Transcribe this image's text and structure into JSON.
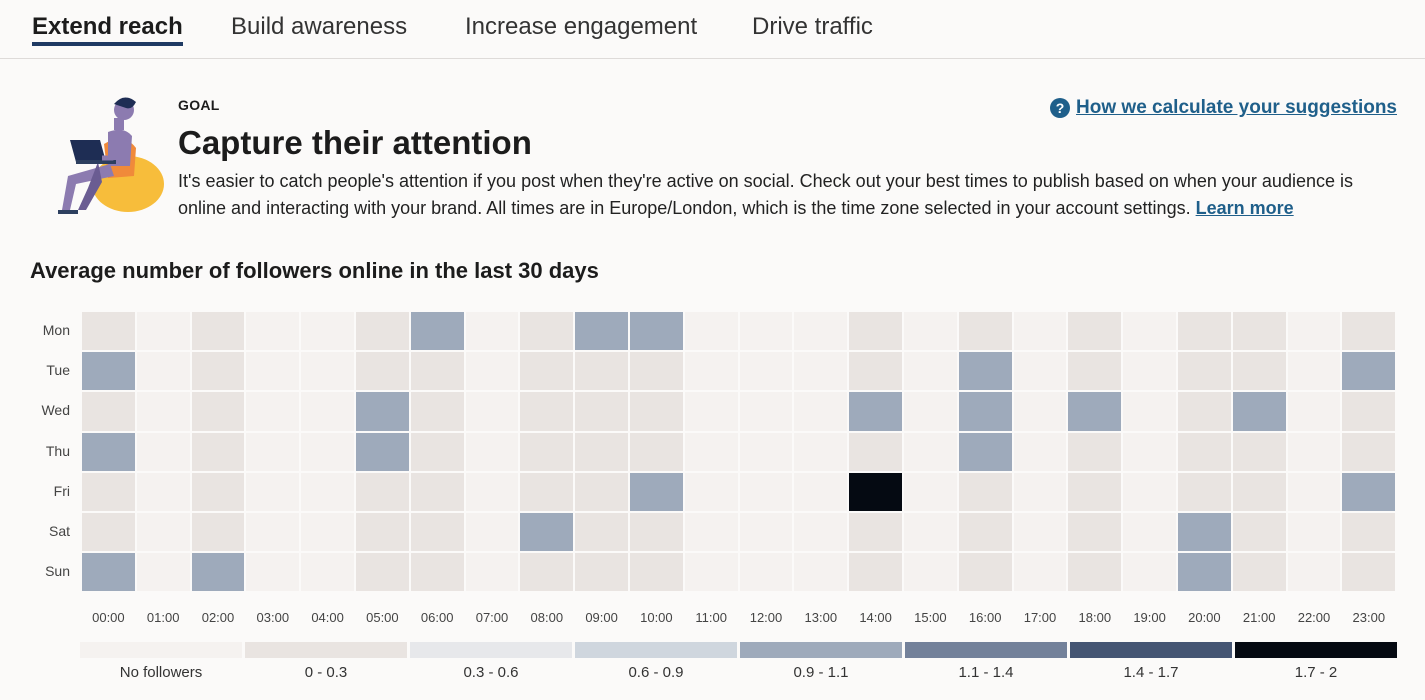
{
  "tabs": [
    {
      "label": "Extend reach",
      "active": true
    },
    {
      "label": "Build awareness",
      "active": false
    },
    {
      "label": "Increase engagement",
      "active": false
    },
    {
      "label": "Drive traffic",
      "active": false
    }
  ],
  "goal": {
    "label": "GOAL",
    "title": "Capture their attention",
    "description": "It's easier to catch people's attention if you post when they're active on social. Check out your best times to publish based on when your audience is online and interacting with your brand. All times are in Europe/London, which is the time zone selected in your account settings.",
    "learn_more": "Learn more"
  },
  "help": {
    "icon": "help-circle-icon",
    "icon_glyph": "?",
    "label": "How we calculate your suggestions"
  },
  "chart_title": "Average number of followers online in the last 30 days",
  "chart_data": {
    "type": "heatmap",
    "title": "Average number of followers online in the last 30 days",
    "rows": [
      "Mon",
      "Tue",
      "Wed",
      "Thu",
      "Fri",
      "Sat",
      "Sun"
    ],
    "columns": [
      "00:00",
      "01:00",
      "02:00",
      "03:00",
      "04:00",
      "05:00",
      "06:00",
      "07:00",
      "08:00",
      "09:00",
      "10:00",
      "11:00",
      "12:00",
      "13:00",
      "14:00",
      "15:00",
      "16:00",
      "17:00",
      "18:00",
      "19:00",
      "20:00",
      "21:00",
      "22:00",
      "23:00"
    ],
    "bucket_values": [
      [
        1,
        0,
        1,
        0,
        0,
        1,
        4,
        0,
        1,
        4,
        4,
        0,
        0,
        0,
        1,
        0,
        1,
        0,
        1,
        0,
        1,
        1,
        0,
        1
      ],
      [
        4,
        0,
        1,
        0,
        0,
        1,
        1,
        0,
        1,
        1,
        1,
        0,
        0,
        0,
        1,
        0,
        4,
        0,
        1,
        0,
        1,
        1,
        0,
        4
      ],
      [
        1,
        0,
        1,
        0,
        0,
        4,
        1,
        0,
        1,
        1,
        1,
        0,
        0,
        0,
        4,
        0,
        4,
        0,
        4,
        0,
        1,
        4,
        0,
        1
      ],
      [
        4,
        0,
        1,
        0,
        0,
        4,
        1,
        0,
        1,
        1,
        1,
        0,
        0,
        0,
        1,
        0,
        4,
        0,
        1,
        0,
        1,
        1,
        0,
        1
      ],
      [
        1,
        0,
        1,
        0,
        0,
        1,
        1,
        0,
        1,
        1,
        4,
        0,
        0,
        0,
        7,
        0,
        1,
        0,
        1,
        0,
        1,
        1,
        0,
        4
      ],
      [
        1,
        0,
        1,
        0,
        0,
        1,
        1,
        0,
        4,
        1,
        1,
        0,
        0,
        0,
        1,
        0,
        1,
        0,
        1,
        0,
        4,
        1,
        0,
        1
      ],
      [
        4,
        0,
        4,
        0,
        0,
        1,
        1,
        0,
        1,
        1,
        1,
        0,
        0,
        0,
        1,
        0,
        1,
        0,
        1,
        0,
        4,
        1,
        0,
        1
      ]
    ],
    "legend": [
      {
        "label": "No followers",
        "color": "#f5f2f0"
      },
      {
        "label": "0 - 0.3",
        "color": "#e9e4e1"
      },
      {
        "label": "0.3 - 0.6",
        "color": "#e7e8eb"
      },
      {
        "label": "0.6 - 0.9",
        "color": "#cfd6de"
      },
      {
        "label": "0.9 - 1.1",
        "color": "#9eaabb"
      },
      {
        "label": "1.1 - 1.4",
        "color": "#73819a"
      },
      {
        "label": "1.4 - 1.7",
        "color": "#455573"
      },
      {
        "label": "1.7 - 2",
        "color": "#050a12"
      }
    ]
  }
}
